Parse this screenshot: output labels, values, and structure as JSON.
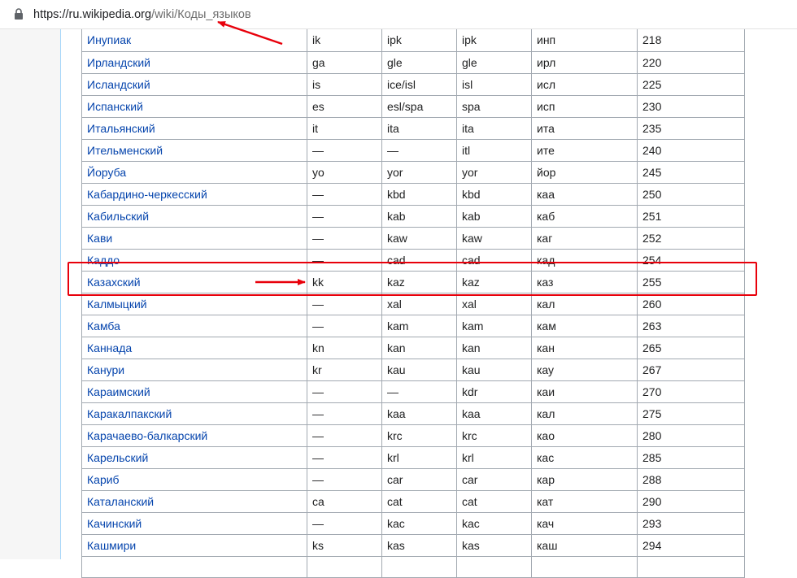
{
  "browser": {
    "url_host": "https://ru.wikipedia.org",
    "url_path": "/wiki/Коды_языков"
  },
  "table": {
    "rows": [
      {
        "name": "Инупиак",
        "iso1": "ik",
        "iso2": "ipk",
        "iso3": "ipk",
        "gost_alpha": "инп",
        "gost_num": "218"
      },
      {
        "name": "Ирландский",
        "iso1": "ga",
        "iso2": "gle",
        "iso3": "gle",
        "gost_alpha": "ирл",
        "gost_num": "220"
      },
      {
        "name": "Исландский",
        "iso1": "is",
        "iso2": "ice/isl",
        "iso3": "isl",
        "gost_alpha": "исл",
        "gost_num": "225"
      },
      {
        "name": "Испанский",
        "iso1": "es",
        "iso2": "esl/spa",
        "iso3": "spa",
        "gost_alpha": "исп",
        "gost_num": "230"
      },
      {
        "name": "Итальянский",
        "iso1": "it",
        "iso2": "ita",
        "iso3": "ita",
        "gost_alpha": "ита",
        "gost_num": "235"
      },
      {
        "name": "Ительменский",
        "iso1": "—",
        "iso2": "—",
        "iso3": "itl",
        "gost_alpha": "ите",
        "gost_num": "240"
      },
      {
        "name": "Йоруба",
        "iso1": "yo",
        "iso2": "yor",
        "iso3": "yor",
        "gost_alpha": "йор",
        "gost_num": "245"
      },
      {
        "name": "Кабардино-черкесский",
        "iso1": "—",
        "iso2": "kbd",
        "iso3": "kbd",
        "gost_alpha": "каа",
        "gost_num": "250"
      },
      {
        "name": "Кабильский",
        "iso1": "—",
        "iso2": "kab",
        "iso3": "kab",
        "gost_alpha": "каб",
        "gost_num": "251"
      },
      {
        "name": "Кави",
        "iso1": "—",
        "iso2": "kaw",
        "iso3": "kaw",
        "gost_alpha": "каг",
        "gost_num": "252"
      },
      {
        "name": "Каддо",
        "iso1": "—",
        "iso2": "cad",
        "iso3": "cad",
        "gost_alpha": "кад",
        "gost_num": "254"
      },
      {
        "name": "Казахский",
        "iso1": "kk",
        "iso2": "kaz",
        "iso3": "kaz",
        "gost_alpha": "каз",
        "gost_num": "255"
      },
      {
        "name": "Калмыцкий",
        "iso1": "—",
        "iso2": "xal",
        "iso3": "xal",
        "gost_alpha": "кал",
        "gost_num": "260"
      },
      {
        "name": "Камба",
        "iso1": "—",
        "iso2": "kam",
        "iso3": "kam",
        "gost_alpha": "кам",
        "gost_num": "263"
      },
      {
        "name": "Каннада",
        "iso1": "kn",
        "iso2": "kan",
        "iso3": "kan",
        "gost_alpha": "кан",
        "gost_num": "265"
      },
      {
        "name": "Канури",
        "iso1": "kr",
        "iso2": "kau",
        "iso3": "kau",
        "gost_alpha": "кау",
        "gost_num": "267"
      },
      {
        "name": "Караимский",
        "iso1": "—",
        "iso2": "—",
        "iso3": "kdr",
        "gost_alpha": "каи",
        "gost_num": "270"
      },
      {
        "name": "Каракалпакский",
        "iso1": "—",
        "iso2": "kaa",
        "iso3": "kaa",
        "gost_alpha": "кал",
        "gost_num": "275"
      },
      {
        "name": "Карачаево-балкарский",
        "iso1": "—",
        "iso2": "krc",
        "iso3": "krc",
        "gost_alpha": "као",
        "gost_num": "280"
      },
      {
        "name": "Карельский",
        "iso1": "—",
        "iso2": "krl",
        "iso3": "krl",
        "gost_alpha": "кас",
        "gost_num": "285"
      },
      {
        "name": "Кариб",
        "iso1": "—",
        "iso2": "car",
        "iso3": "car",
        "gost_alpha": "кар",
        "gost_num": "288"
      },
      {
        "name": "Каталанский",
        "iso1": "ca",
        "iso2": "cat",
        "iso3": "cat",
        "gost_alpha": "кат",
        "gost_num": "290"
      },
      {
        "name": "Качинский",
        "iso1": "—",
        "iso2": "kac",
        "iso3": "kac",
        "gost_alpha": "кач",
        "gost_num": "293"
      },
      {
        "name": "Кашмири",
        "iso1": "ks",
        "iso2": "kas",
        "iso3": "kas",
        "gost_alpha": "каш",
        "gost_num": "294"
      },
      {
        "name": "",
        "iso1": "",
        "iso2": "",
        "iso3": "",
        "gost_alpha": "",
        "gost_num": ""
      }
    ]
  },
  "annotations": {
    "color": "#e8000b",
    "highlighted_row_index": 11
  }
}
